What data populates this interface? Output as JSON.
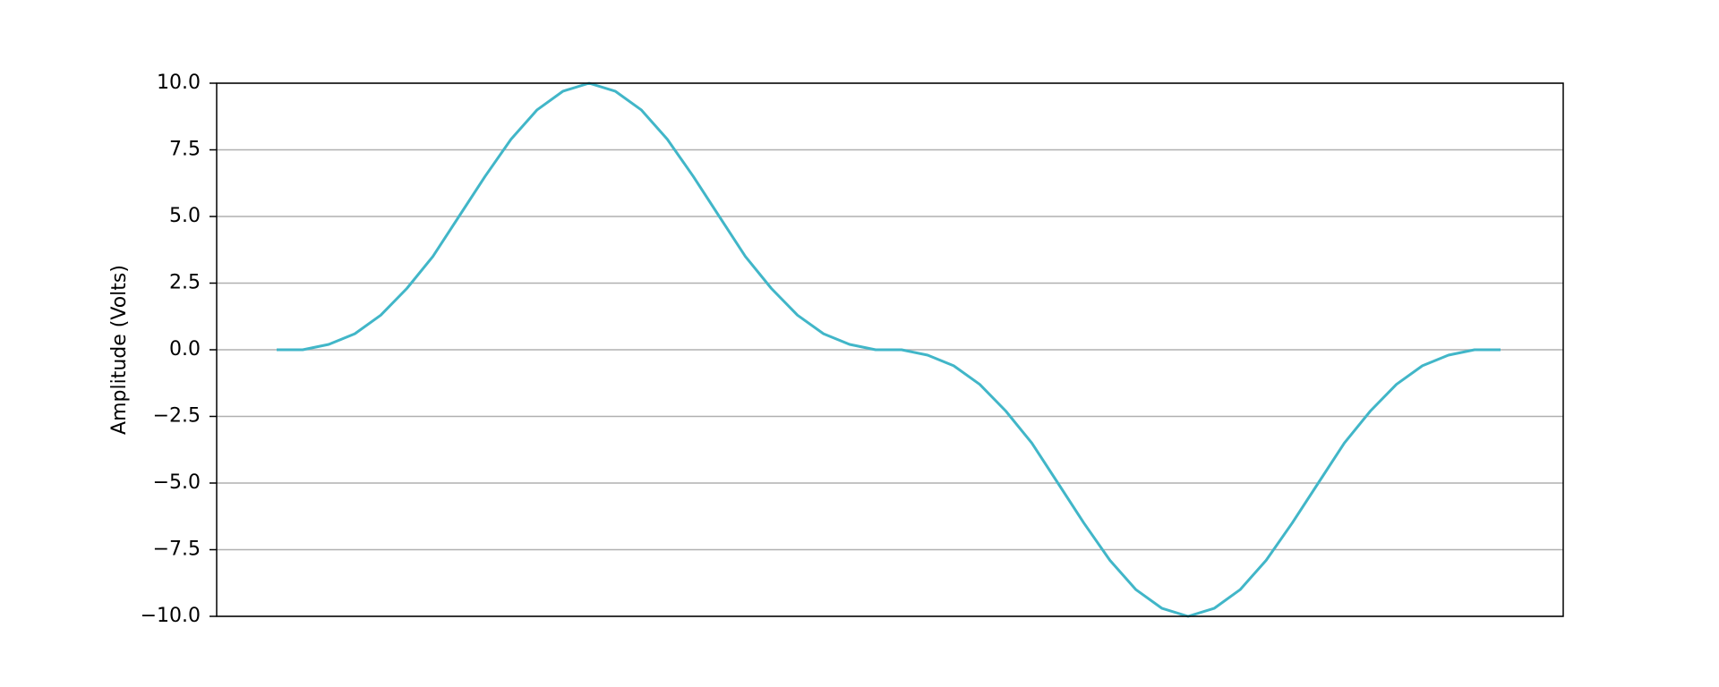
{
  "chart_data": {
    "type": "line",
    "y_label": "Amplitude (Volts)",
    "values": [
      0,
      0,
      0.2,
      0.6,
      1.3,
      2.3,
      3.5,
      5.0,
      6.5,
      7.9,
      9.0,
      9.7,
      10,
      9.7,
      9.0,
      7.9,
      6.5,
      5.0,
      3.5,
      2.3,
      1.3,
      0.6,
      0.2,
      0,
      0,
      -0.2,
      -0.6,
      -1.3,
      -2.3,
      -3.5,
      -5.0,
      -6.5,
      -7.9,
      -9.0,
      -9.7,
      -10,
      -9.7,
      -9.0,
      -7.9,
      -6.5,
      -5.0,
      -3.5,
      -2.3,
      -1.3,
      -0.6,
      -0.2,
      0,
      0
    ],
    "color": "#41b6c8",
    "ylim": [
      -10,
      10
    ],
    "yticks": [
      {
        "value": -10,
        "label": "−10.0"
      },
      {
        "value": -7.5,
        "label": "−7.5"
      },
      {
        "value": -5,
        "label": "−5.0"
      },
      {
        "value": -2.5,
        "label": "−2.5"
      },
      {
        "value": 0,
        "label": "0.0"
      },
      2.5,
      {
        "value": 5,
        "label": "5.0"
      },
      7.5,
      {
        "value": 10,
        "label": "10.0"
      }
    ],
    "grid": true
  }
}
